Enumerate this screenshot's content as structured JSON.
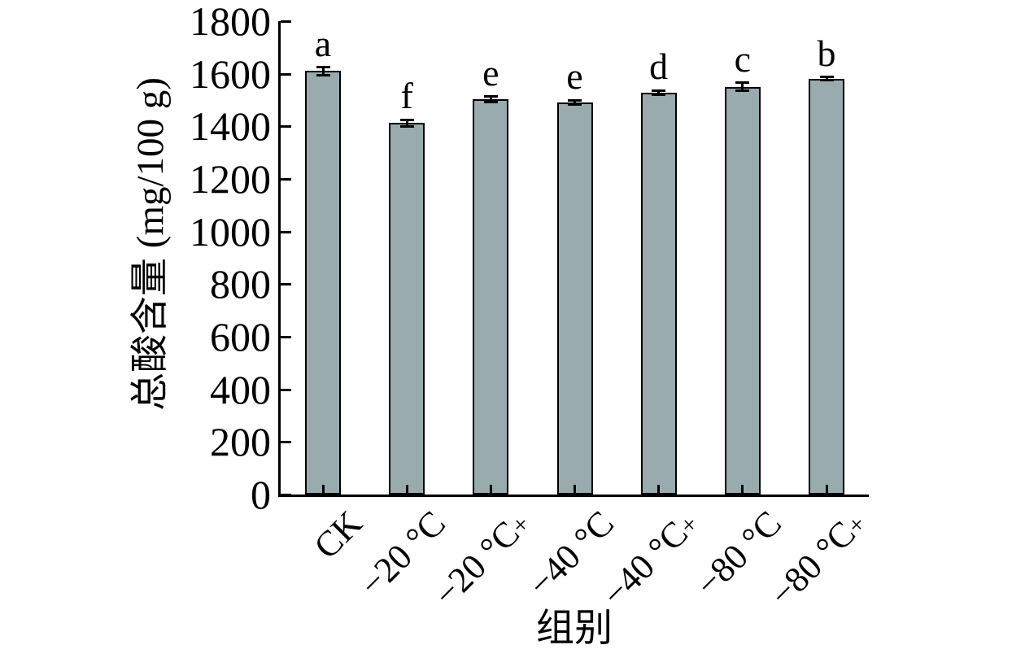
{
  "chart_data": {
    "type": "bar",
    "title": "",
    "xlabel": "组别",
    "ylabel": "总酸含量 (mg/100 g)",
    "categories": [
      "CK",
      "−20 °C",
      "−20 °C+",
      "−40 °C",
      "−40 °C+",
      "−80 °C",
      "−80 °C+"
    ],
    "values": [
      1610,
      1413,
      1503,
      1491,
      1528,
      1550,
      1581
    ],
    "errors": [
      15,
      12,
      10,
      9,
      9,
      15,
      6
    ],
    "sig_letters": [
      "a",
      "f",
      "e",
      "e",
      "d",
      "c",
      "b"
    ],
    "ylim": [
      0,
      1800
    ],
    "yticks": [
      0,
      200,
      400,
      600,
      800,
      1000,
      1200,
      1400,
      1600,
      1800
    ],
    "grid": false,
    "legend": null,
    "bar_color": "#9aabb0",
    "bar_border_color": "#000000",
    "axis_color": "#000000"
  }
}
